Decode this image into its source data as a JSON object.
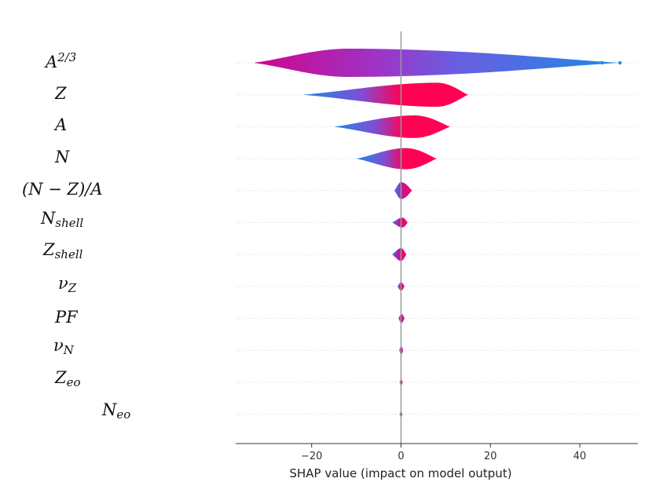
{
  "chart_data": {
    "type": "violin",
    "title": "",
    "xlabel": "SHAP value (impact on model output)",
    "ylabel": "",
    "xlim": [
      -37,
      53
    ],
    "xticks": [
      -20,
      0,
      20,
      40
    ],
    "xtick_labels": [
      "−20",
      "0",
      "20",
      "40"
    ],
    "color_low": "#1e88e5",
    "color_high": "#ff0052",
    "features": [
      {
        "label": "A2/3",
        "base": "A",
        "sup": "2/3",
        "sub": "",
        "min": -33,
        "max": 49,
        "peak": -12,
        "height": 1.0,
        "tail": [
          45,
          49
        ]
      },
      {
        "label": "Z",
        "base": "Z",
        "sup": "",
        "sub": "",
        "min": -22,
        "max": 15,
        "peak": 8,
        "height": 0.85,
        "tail": []
      },
      {
        "label": "A",
        "base": "A",
        "sup": "",
        "sub": "",
        "min": -15,
        "max": 11,
        "peak": 3,
        "height": 0.8,
        "tail": []
      },
      {
        "label": "N",
        "base": "N",
        "sup": "",
        "sub": "",
        "min": -10,
        "max": 8,
        "peak": 1,
        "height": 0.75,
        "tail": []
      },
      {
        "label": "(N − Z)/A",
        "base": "(N − Z)/A",
        "sup": "",
        "sub": "",
        "min": -1.5,
        "max": 2.5,
        "peak": 0,
        "height": 0.6,
        "tail": []
      },
      {
        "label": "Nshell",
        "base": "N",
        "sup": "",
        "sub": "shell",
        "min": -2,
        "max": 1.5,
        "peak": 0.3,
        "height": 0.35,
        "tail": []
      },
      {
        "label": "Zshell",
        "base": "Z",
        "sup": "",
        "sub": "shell",
        "min": -2,
        "max": 1.2,
        "peak": 0,
        "height": 0.45,
        "tail": []
      },
      {
        "label": "νZ",
        "base": "ν",
        "sup": "",
        "sub": "Z",
        "min": -0.8,
        "max": 0.8,
        "peak": 0,
        "height": 0.3,
        "tail": []
      },
      {
        "label": "PF",
        "base": "PF",
        "sup": "",
        "sub": "",
        "min": -0.6,
        "max": 0.8,
        "peak": 0.1,
        "height": 0.32,
        "tail": []
      },
      {
        "label": "νN",
        "base": "ν",
        "sup": "",
        "sub": "N",
        "min": -0.4,
        "max": 0.5,
        "peak": 0,
        "height": 0.3,
        "tail": []
      },
      {
        "label": "Zeo",
        "base": "Z",
        "sup": "",
        "sub": "eo",
        "min": -0.3,
        "max": 0.4,
        "peak": 0,
        "height": 0.22,
        "tail": []
      },
      {
        "label": "Neo",
        "base": "N",
        "sup": "",
        "sub": "eo",
        "min": -0.3,
        "max": 0.3,
        "peak": 0,
        "height": 0.22,
        "tail": []
      }
    ]
  }
}
